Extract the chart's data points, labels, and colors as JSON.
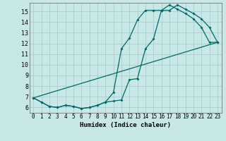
{
  "xlabel": "Humidex (Indice chaleur)",
  "bg_color": "#c8e8e8",
  "grid_color": "#afd0d0",
  "line_color": "#006868",
  "xlim": [
    -0.5,
    23.5
  ],
  "ylim": [
    5.5,
    15.8
  ],
  "xticks": [
    0,
    1,
    2,
    3,
    4,
    5,
    6,
    7,
    8,
    9,
    10,
    11,
    12,
    13,
    14,
    15,
    16,
    17,
    18,
    19,
    20,
    21,
    22,
    23
  ],
  "yticks": [
    6,
    7,
    8,
    9,
    10,
    11,
    12,
    13,
    14,
    15
  ],
  "line1_x": [
    0,
    1,
    2,
    3,
    4,
    5,
    6,
    7,
    8,
    9,
    10,
    11,
    12,
    13,
    14,
    15,
    16,
    17,
    18,
    19,
    20,
    21,
    22,
    23
  ],
  "line1_y": [
    6.9,
    6.5,
    6.1,
    6.0,
    6.2,
    6.1,
    5.9,
    6.0,
    6.2,
    6.5,
    6.6,
    6.7,
    8.6,
    8.7,
    11.5,
    12.4,
    15.1,
    15.1,
    15.6,
    15.2,
    14.8,
    14.3,
    13.5,
    12.1
  ],
  "line2_x": [
    0,
    1,
    2,
    3,
    4,
    5,
    6,
    7,
    8,
    9,
    10,
    11,
    12,
    13,
    14,
    15,
    16,
    17,
    18,
    19,
    20,
    21,
    22,
    23
  ],
  "line2_y": [
    6.9,
    6.5,
    6.1,
    6.0,
    6.2,
    6.1,
    5.9,
    6.0,
    6.2,
    6.5,
    7.4,
    11.5,
    12.5,
    14.2,
    15.1,
    15.1,
    15.1,
    15.6,
    15.2,
    14.8,
    14.3,
    13.5,
    12.1,
    12.1
  ],
  "line3_x": [
    0,
    23
  ],
  "line3_y": [
    6.9,
    12.1
  ]
}
